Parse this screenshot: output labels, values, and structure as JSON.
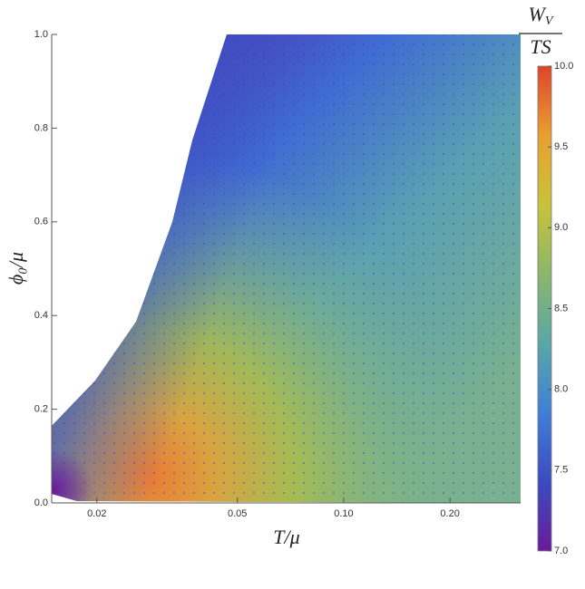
{
  "chart_data": {
    "type": "density",
    "x_label": "T/μ",
    "y_label": "ϕ₀/μ",
    "xscale": "log",
    "xlim": [
      0.0149,
      0.317
    ],
    "xticks": [
      0.02,
      0.05,
      {
        "value": 0.1,
        "label": "0.10"
      },
      {
        "value": 0.2,
        "label": "0.20"
      }
    ],
    "ylim": [
      0,
      1
    ],
    "yticks": [
      {
        "value": 0,
        "label": "0.0"
      },
      0.2,
      0.4,
      0.6,
      0.8,
      {
        "value": 1,
        "label": "1.0"
      }
    ],
    "colorbar": {
      "numerator": "W",
      "numerator_subscript": "V",
      "denominator": "TS",
      "lim": [
        7,
        10
      ],
      "ticks": [
        {
          "value": 7,
          "label": "7.0"
        },
        7.5,
        {
          "value": 8,
          "label": "8.0"
        },
        8.5,
        {
          "value": 9,
          "label": "9.0"
        },
        9.5,
        {
          "value": 10,
          "label": "10.0"
        }
      ],
      "colors": [
        "#6a1b9a",
        "#3b4cc0",
        "#3f7fd6",
        "#5aa7a8",
        "#8ab86a",
        "#c9c23a",
        "#e8a030",
        "#e0432a"
      ]
    }
  }
}
